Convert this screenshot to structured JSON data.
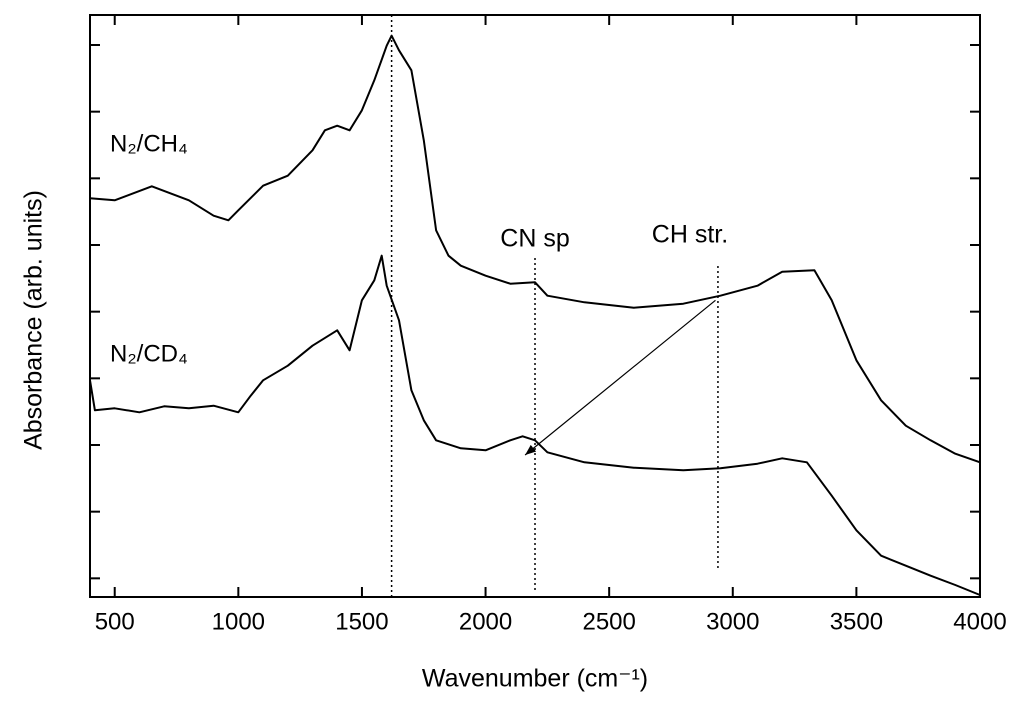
{
  "chart_data": {
    "type": "line",
    "ylabel": "Absorbance (arb. units)",
    "xlabel": "Wavenumber (cm⁻¹)",
    "xlim": [
      400,
      4000
    ],
    "xticks": [
      500,
      1000,
      1500,
      2000,
      2500,
      3000,
      3500,
      4000
    ],
    "ylim": [
      -0.28,
      8.45
    ],
    "yticks": [
      0,
      1,
      2,
      3,
      4,
      5,
      6,
      7,
      8
    ],
    "series": [
      {
        "name": "N₂/CH₄",
        "color": "#000000",
        "x": [
          400,
          500,
          650,
          800,
          900,
          960,
          1000,
          1100,
          1200,
          1300,
          1350,
          1400,
          1450,
          1500,
          1550,
          1600,
          1620,
          1650,
          1700,
          1750,
          1800,
          1850,
          1900,
          2000,
          2100,
          2200,
          2250,
          2400,
          2600,
          2800,
          2950,
          3100,
          3200,
          3330,
          3400,
          3500,
          3600,
          3700,
          3800,
          3900,
          4000
        ],
        "values": [
          5.7,
          5.67,
          5.88,
          5.67,
          5.44,
          5.37,
          5.52,
          5.89,
          6.04,
          6.42,
          6.72,
          6.79,
          6.72,
          7.02,
          7.47,
          7.99,
          8.14,
          7.92,
          7.62,
          6.57,
          5.22,
          4.84,
          4.69,
          4.54,
          4.42,
          4.44,
          4.24,
          4.14,
          4.06,
          4.12,
          4.24,
          4.39,
          4.6,
          4.62,
          4.17,
          3.27,
          2.67,
          2.29,
          2.07,
          1.87,
          1.74
        ]
      },
      {
        "name": "N₂/CD₄",
        "color": "#000000",
        "x": [
          400,
          420,
          500,
          600,
          700,
          800,
          900,
          1000,
          1050,
          1100,
          1200,
          1300,
          1400,
          1450,
          1500,
          1550,
          1580,
          1600,
          1650,
          1700,
          1750,
          1800,
          1900,
          2000,
          2100,
          2150,
          2200,
          2250,
          2400,
          2600,
          2800,
          2950,
          3100,
          3200,
          3300,
          3400,
          3500,
          3600,
          3700,
          3800,
          3900,
          4000
        ],
        "values": [
          2.97,
          2.52,
          2.55,
          2.49,
          2.58,
          2.55,
          2.59,
          2.49,
          2.74,
          2.97,
          3.19,
          3.49,
          3.72,
          3.42,
          4.17,
          4.47,
          4.84,
          4.39,
          3.87,
          2.82,
          2.37,
          2.07,
          1.95,
          1.92,
          2.07,
          2.13,
          2.07,
          1.89,
          1.74,
          1.66,
          1.62,
          1.65,
          1.72,
          1.8,
          1.74,
          1.24,
          0.72,
          0.34,
          0.19,
          0.04,
          -0.1,
          -0.25
        ]
      }
    ],
    "annotations": [
      "CN sp",
      "CH str."
    ],
    "vlines": [
      1620,
      2200,
      2940
    ],
    "arrow": {
      "from": [
        2930,
        4.17
      ],
      "to": [
        2160,
        1.85
      ]
    }
  }
}
